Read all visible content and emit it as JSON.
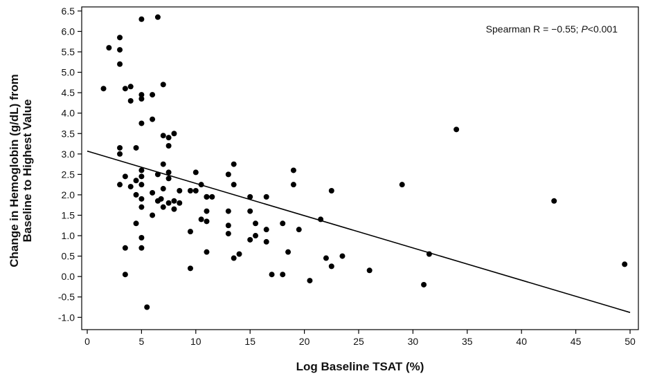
{
  "chart_data": {
    "type": "scatter",
    "title": "",
    "xlabel": "Log Baseline TSAT (%)",
    "ylabel_line1": "Change in Hemoglobin (g/dL) from",
    "ylabel_line2": "Baseline to Highest Value",
    "xlim": [
      0,
      50
    ],
    "ylim": [
      -1.3,
      6.6
    ],
    "x_ticks": [
      0,
      5,
      10,
      15,
      20,
      25,
      30,
      35,
      40,
      45,
      50
    ],
    "x_tick_labels": [
      "0",
      "5",
      "10",
      "15",
      "20",
      "25",
      "30",
      "35",
      "40",
      "45",
      "50"
    ],
    "y_ticks": [
      -1.0,
      -0.5,
      0.0,
      0.5,
      1.0,
      1.5,
      2.0,
      2.5,
      3.0,
      3.5,
      4.0,
      4.5,
      5.0,
      5.5,
      6.0,
      6.5
    ],
    "y_tick_labels": [
      "-1.0",
      "-0.5",
      "0.0",
      "0.5",
      "1.0",
      "1.5",
      "2.0",
      "2.5",
      "3.0",
      "3.5",
      "4.0",
      "4.5",
      "5.0",
      "5.5",
      "6.0",
      "6.5"
    ],
    "grid": false,
    "annotation": {
      "prefix": "Spearman R = −0.55; ",
      "p_label": "P",
      "suffix": "<0.001",
      "position": "top-right"
    },
    "regression_line": {
      "x": [
        0,
        50
      ],
      "y": [
        3.07,
        -0.88
      ]
    },
    "points": {
      "x": [
        1.5,
        2.0,
        3.0,
        3.0,
        3.0,
        3.0,
        3.0,
        3.0,
        3.5,
        3.5,
        3.5,
        3.5,
        4.0,
        4.0,
        4.0,
        4.5,
        4.5,
        4.5,
        4.5,
        5.0,
        5.0,
        5.0,
        5.0,
        5.0,
        5.0,
        5.0,
        5.0,
        5.0,
        5.0,
        5.0,
        5.5,
        6.0,
        6.0,
        6.0,
        6.0,
        6.5,
        6.5,
        6.5,
        6.8,
        7.0,
        7.0,
        7.0,
        7.0,
        7.0,
        7.5,
        7.5,
        7.5,
        7.5,
        7.5,
        8.0,
        8.0,
        8.0,
        8.5,
        8.5,
        9.5,
        9.5,
        9.5,
        10.0,
        10.0,
        10.5,
        10.5,
        11.0,
        11.0,
        11.0,
        11.0,
        11.0,
        11.5,
        13.0,
        13.0,
        13.0,
        13.0,
        13.5,
        13.5,
        13.5,
        14.0,
        15.0,
        15.0,
        15.0,
        15.5,
        15.5,
        16.5,
        16.5,
        16.5,
        17.0,
        18.0,
        18.0,
        18.5,
        19.0,
        19.0,
        19.5,
        20.5,
        21.5,
        22.0,
        22.5,
        22.5,
        23.5,
        26.0,
        29.0,
        31.0,
        31.5,
        34.0,
        43.0,
        49.5
      ],
      "y": [
        4.6,
        5.6,
        5.85,
        5.55,
        5.2,
        3.15,
        3.0,
        2.25,
        4.6,
        2.45,
        0.7,
        0.05,
        4.65,
        4.3,
        2.2,
        3.15,
        2.35,
        2.0,
        1.3,
        6.3,
        4.45,
        4.35,
        3.75,
        2.6,
        2.45,
        2.25,
        1.9,
        1.7,
        0.95,
        0.7,
        -0.75,
        4.45,
        3.85,
        2.05,
        1.5,
        6.35,
        2.5,
        1.85,
        1.9,
        4.7,
        3.45,
        2.75,
        2.15,
        1.7,
        3.4,
        3.2,
        2.55,
        2.4,
        1.8,
        3.5,
        1.85,
        1.65,
        2.1,
        1.8,
        2.1,
        1.1,
        0.2,
        2.55,
        2.1,
        2.25,
        1.4,
        1.95,
        1.6,
        1.35,
        0.6,
        1.95,
        1.95,
        2.5,
        1.6,
        1.25,
        1.05,
        2.75,
        2.25,
        0.45,
        0.55,
        1.95,
        1.6,
        0.9,
        1.3,
        1.0,
        1.95,
        1.15,
        0.85,
        0.05,
        1.3,
        0.05,
        0.6,
        2.6,
        2.25,
        1.15,
        -0.1,
        1.4,
        0.45,
        2.1,
        0.25,
        0.5,
        0.15,
        2.25,
        -0.2,
        0.55,
        3.6,
        1.85,
        0.3
      ]
    }
  }
}
